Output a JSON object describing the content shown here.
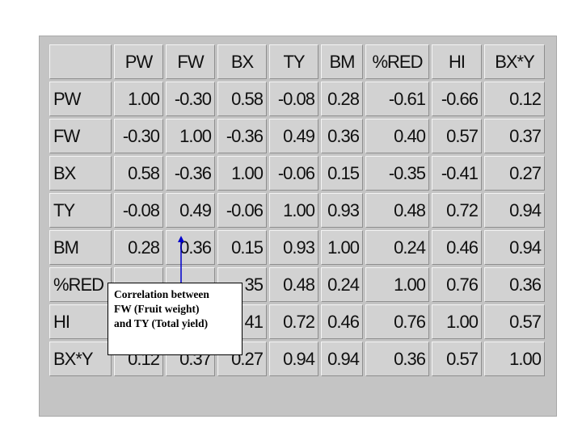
{
  "table": {
    "headers": [
      "PW",
      "FW",
      "BX",
      "TY",
      "BM",
      "%RED",
      "HI",
      "BX*Y"
    ],
    "rows": [
      {
        "label": "PW",
        "values": [
          "1.00",
          "-0.30",
          "0.58",
          "-0.08",
          "0.28",
          "-0.61",
          "-0.66",
          "0.12"
        ]
      },
      {
        "label": "FW",
        "values": [
          "-0.30",
          "1.00",
          "-0.36",
          "0.49",
          "0.36",
          "0.40",
          "0.57",
          "0.37"
        ]
      },
      {
        "label": "BX",
        "values": [
          "0.58",
          "-0.36",
          "1.00",
          "-0.06",
          "0.15",
          "-0.35",
          "-0.41",
          "0.27"
        ]
      },
      {
        "label": "TY",
        "values": [
          "-0.08",
          "0.49",
          "-0.06",
          "1.00",
          "0.93",
          "0.48",
          "0.72",
          "0.94"
        ]
      },
      {
        "label": "BM",
        "values": [
          "0.28",
          "0.36",
          "0.15",
          "0.93",
          "1.00",
          "0.24",
          "0.46",
          "0.94"
        ]
      },
      {
        "label": "%RED",
        "values": [
          "",
          "",
          "35",
          "0.48",
          "0.24",
          "1.00",
          "0.76",
          "0.36"
        ]
      },
      {
        "label": "HI",
        "values": [
          "",
          "",
          "41",
          "0.72",
          "0.46",
          "0.76",
          "1.00",
          "0.57"
        ]
      },
      {
        "label": "BX*Y",
        "values": [
          "0.12",
          "0.37",
          "0.27",
          "0.94",
          "0.94",
          "0.36",
          "0.57",
          "1.00"
        ]
      }
    ]
  },
  "annotation": {
    "lines": [
      "Correlation between",
      "FW (Fruit weight)",
      "and TY (Total yield)"
    ],
    "arrow_color": "#0000cc"
  }
}
